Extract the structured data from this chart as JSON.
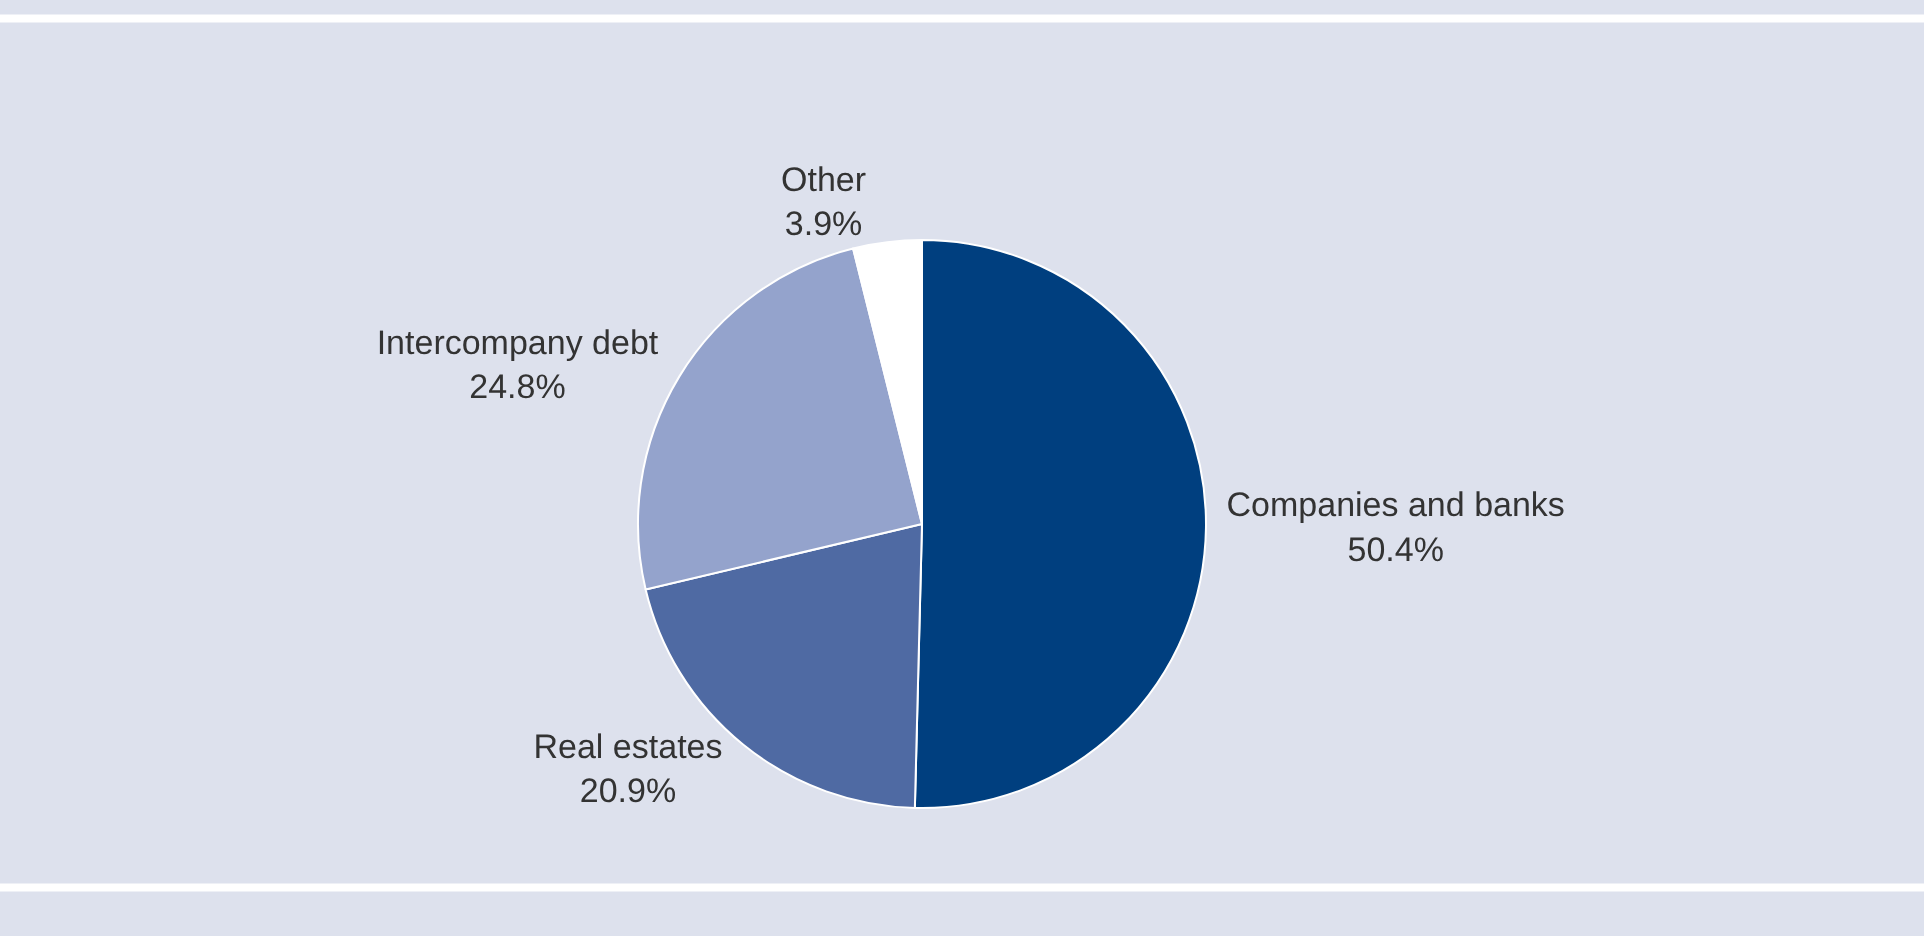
{
  "chart_data": {
    "type": "pie",
    "categories": [
      "Companies and banks",
      "Real estates",
      "Intercompany debt",
      "Other"
    ],
    "values": [
      50.4,
      20.9,
      24.8,
      3.9
    ],
    "value_labels": [
      "50.4%",
      "20.9%",
      "24.8%",
      "3.9%"
    ],
    "colors": [
      "#003f7f",
      "#4f6aa3",
      "#94a3cc",
      "#ffffff"
    ],
    "legend": false
  }
}
